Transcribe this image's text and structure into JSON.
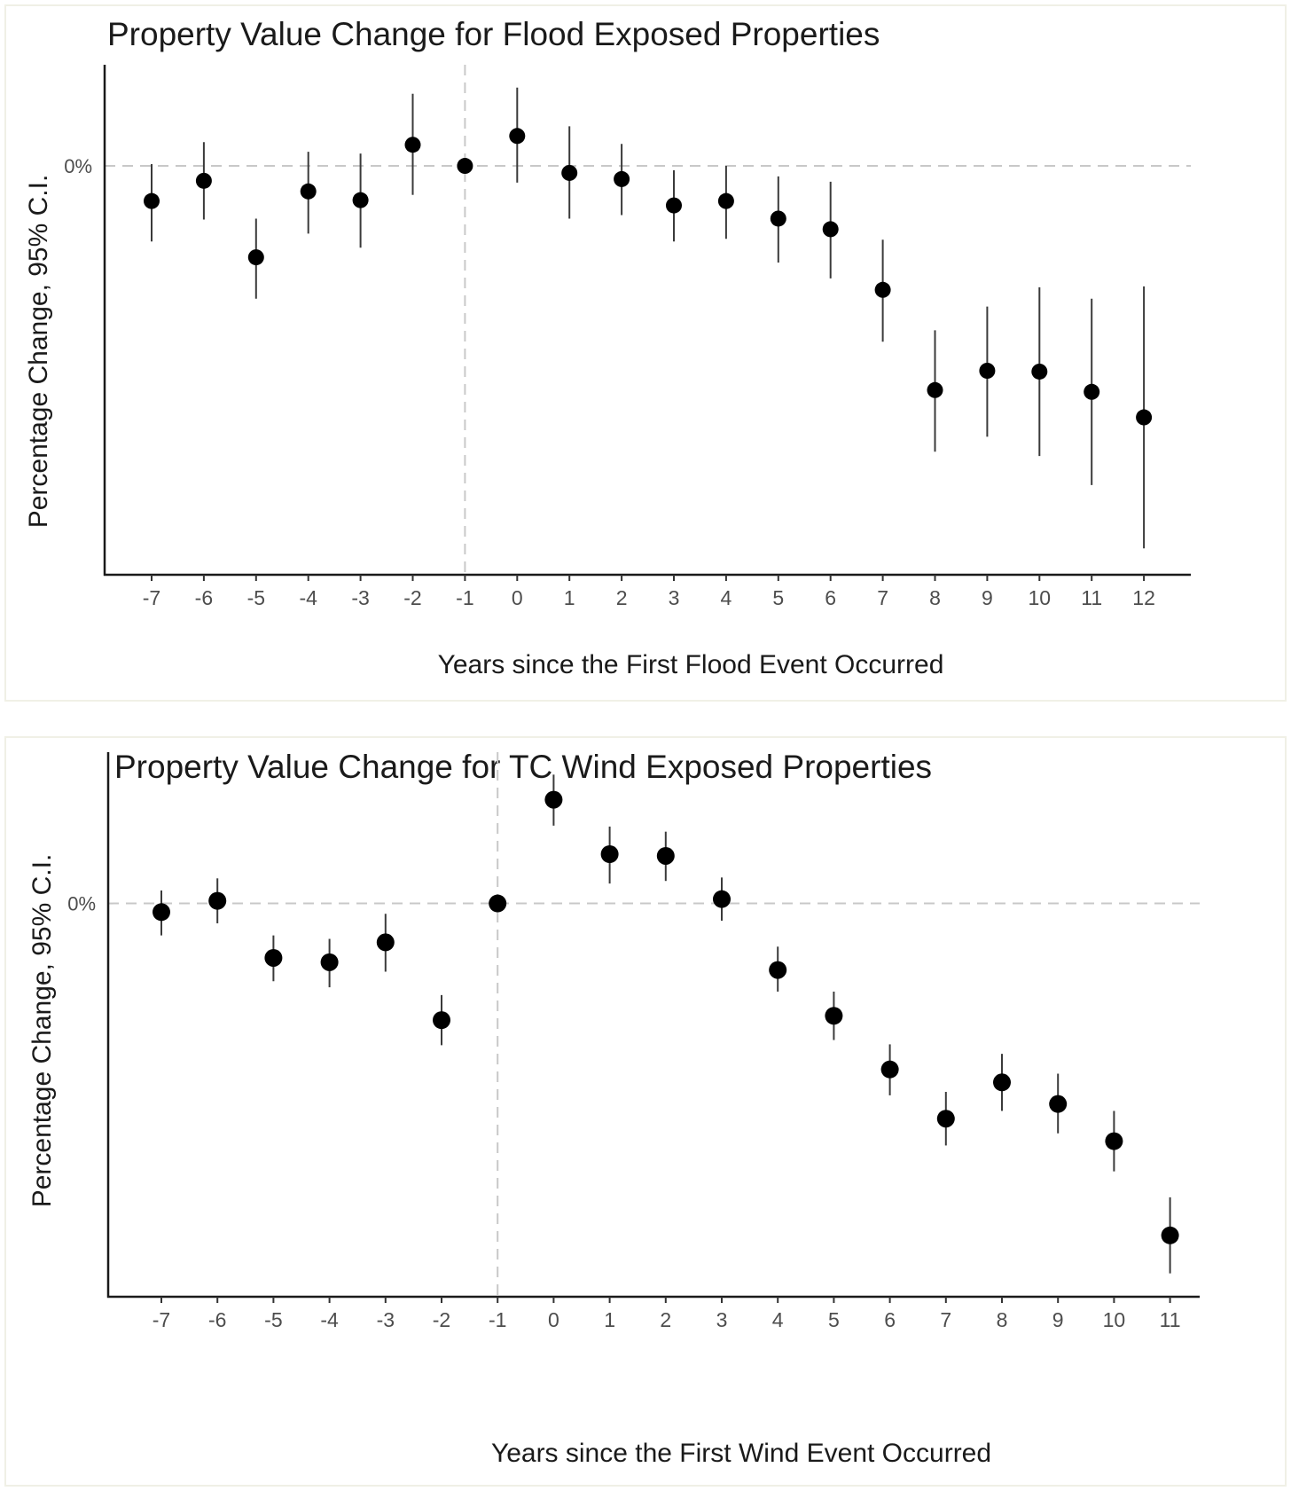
{
  "chart_data": [
    {
      "type": "scatter",
      "subtype": "point-range",
      "title": "Property Value Change for Flood Exposed Properties",
      "xlabel": "Years since the First Flood Event Occurred",
      "ylabel": "Percentage Change, 95% C.I.",
      "zero_label": "0%",
      "x": [
        -7,
        -6,
        -5,
        -4,
        -3,
        -2,
        -1,
        0,
        1,
        2,
        3,
        4,
        5,
        6,
        7,
        8,
        9,
        10,
        11,
        12
      ],
      "x_tick_labels": [
        "-7",
        "-6",
        "-5",
        "-4",
        "-3",
        "-2",
        "-1",
        "0",
        "1",
        "2",
        "3",
        "4",
        "5",
        "6",
        "7",
        "8",
        "9",
        "10",
        "11",
        "12"
      ],
      "estimate": [
        -0.4,
        -0.17,
        -1.04,
        -0.29,
        -0.39,
        0.24,
        0.0,
        0.34,
        -0.08,
        -0.15,
        -0.45,
        -0.4,
        -0.6,
        -0.72,
        -1.41,
        -2.55,
        -2.33,
        -2.34,
        -2.57,
        -2.86
      ],
      "ci_low": [
        -0.86,
        -0.61,
        -1.51,
        -0.77,
        -0.93,
        -0.33,
        0.0,
        -0.19,
        -0.6,
        -0.56,
        -0.86,
        -0.83,
        -1.1,
        -1.28,
        -2.0,
        -3.25,
        -3.08,
        -3.3,
        -3.63,
        -4.35
      ],
      "ci_high": [
        0.02,
        0.27,
        -0.6,
        0.16,
        0.14,
        0.82,
        0.0,
        0.89,
        0.45,
        0.25,
        -0.05,
        0.0,
        -0.12,
        -0.18,
        -0.84,
        -1.87,
        -1.6,
        -1.38,
        -1.51,
        -1.37
      ],
      "ylim": [
        -4.65,
        1.15
      ],
      "reference_x": -1,
      "reference_y": 0,
      "grid": false
    },
    {
      "type": "scatter",
      "subtype": "point-range",
      "title": "Property Value Change for TC Wind Exposed Properties",
      "xlabel": "Years since the First Wind Event Occurred",
      "ylabel": "Percentage Change, 95% C.I.",
      "zero_label": "0%",
      "x": [
        -7,
        -6,
        -5,
        -4,
        -3,
        -2,
        -1,
        0,
        1,
        2,
        3,
        4,
        5,
        6,
        7,
        8,
        9,
        10,
        11
      ],
      "x_tick_labels": [
        "-7",
        "-6",
        "-5",
        "-4",
        "-3",
        "-2",
        "-1",
        "0",
        "1",
        "2",
        "3",
        "4",
        "5",
        "6",
        "7",
        "8",
        "9",
        "10",
        "11"
      ],
      "estimate": [
        -0.1,
        0.03,
        -0.63,
        -0.68,
        -0.45,
        -1.35,
        0.0,
        1.2,
        0.57,
        0.55,
        0.05,
        -0.77,
        -1.3,
        -1.92,
        -2.49,
        -2.07,
        -2.32,
        -2.75,
        -3.84
      ],
      "ci_low": [
        -0.37,
        -0.23,
        -0.9,
        -0.97,
        -0.79,
        -1.64,
        0.0,
        0.9,
        0.23,
        0.26,
        -0.2,
        -1.02,
        -1.58,
        -2.22,
        -2.8,
        -2.4,
        -2.66,
        -3.1,
        -4.28
      ],
      "ci_high": [
        0.15,
        0.29,
        -0.37,
        -0.41,
        -0.12,
        -1.06,
        0.0,
        1.49,
        0.89,
        0.83,
        0.3,
        -0.5,
        -1.02,
        -1.63,
        -2.18,
        -1.74,
        -1.97,
        -2.4,
        -3.4
      ],
      "ylim": [
        -4.55,
        1.75
      ],
      "reference_x": -1,
      "reference_y": 0,
      "grid": false
    }
  ]
}
